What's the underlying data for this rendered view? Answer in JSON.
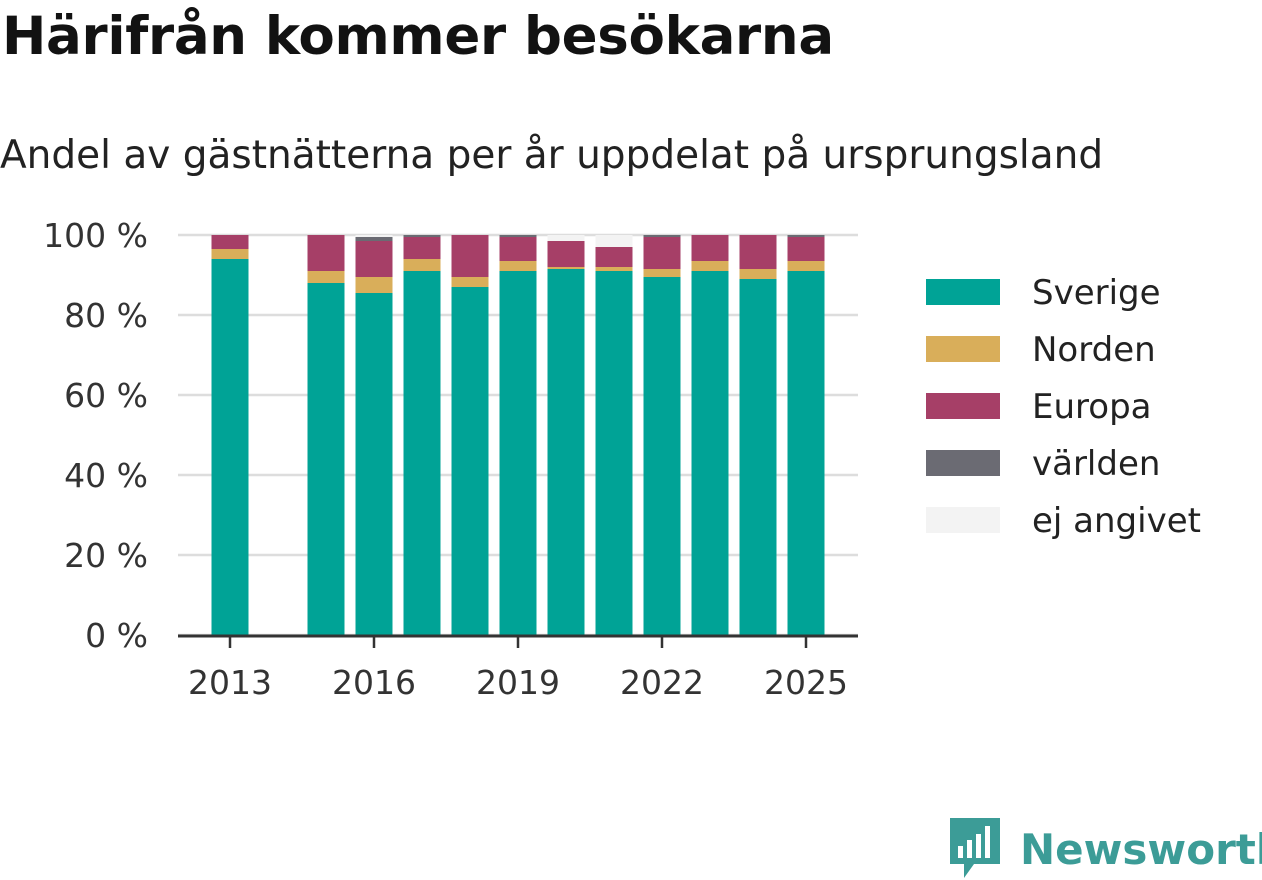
{
  "title": "Härifrån kommer besökarna",
  "subtitle": "Andel av gästnätterna per år uppdelat på ursprungsland",
  "brand": "Newsworthy",
  "colors": {
    "Sverige": "#00a396",
    "Norden": "#d9ae5a",
    "Europa": "#a63f67",
    "världen": "#6b6b73",
    "ej angivet": "#f3f3f3",
    "grid": "#dddddd",
    "axis": "#333333",
    "brand": "#3c9c97"
  },
  "icon": "bar-chart-speech-bubble-logo-icon",
  "chart_data": {
    "type": "bar",
    "stacked": true,
    "categories": [
      "2013",
      "2014",
      "2015",
      "2016",
      "2017",
      "2018",
      "2019",
      "2020",
      "2021",
      "2022",
      "2023",
      "2024",
      "2025"
    ],
    "x_tick_labels": [
      "2013",
      "2016",
      "2019",
      "2022",
      "2025"
    ],
    "y_tick_labels": [
      "0 %",
      "20 %",
      "40 %",
      "60 %",
      "80 %",
      "100 %"
    ],
    "ylim": [
      0,
      100
    ],
    "grid": true,
    "legend_position": "right",
    "series": [
      {
        "name": "Sverige",
        "values": [
          94,
          null,
          88,
          85.5,
          91,
          87,
          91,
          91.5,
          91,
          89.5,
          91,
          89,
          91
        ]
      },
      {
        "name": "Norden",
        "values": [
          2.5,
          null,
          3,
          4,
          3,
          2.5,
          2.5,
          0.5,
          1,
          2,
          2.5,
          2.5,
          2.5
        ]
      },
      {
        "name": "Europa",
        "values": [
          3.5,
          null,
          9,
          9,
          5.5,
          10.5,
          6,
          6.5,
          5,
          8,
          6.5,
          8.5,
          6
        ]
      },
      {
        "name": "världen",
        "values": [
          0,
          null,
          0,
          1,
          0.5,
          0,
          0.5,
          0,
          0,
          0.5,
          0,
          0,
          0.5
        ]
      },
      {
        "name": "ej angivet",
        "values": [
          0,
          null,
          0,
          0.5,
          0,
          0,
          0,
          1.5,
          3,
          0,
          0,
          0,
          0
        ]
      }
    ]
  }
}
